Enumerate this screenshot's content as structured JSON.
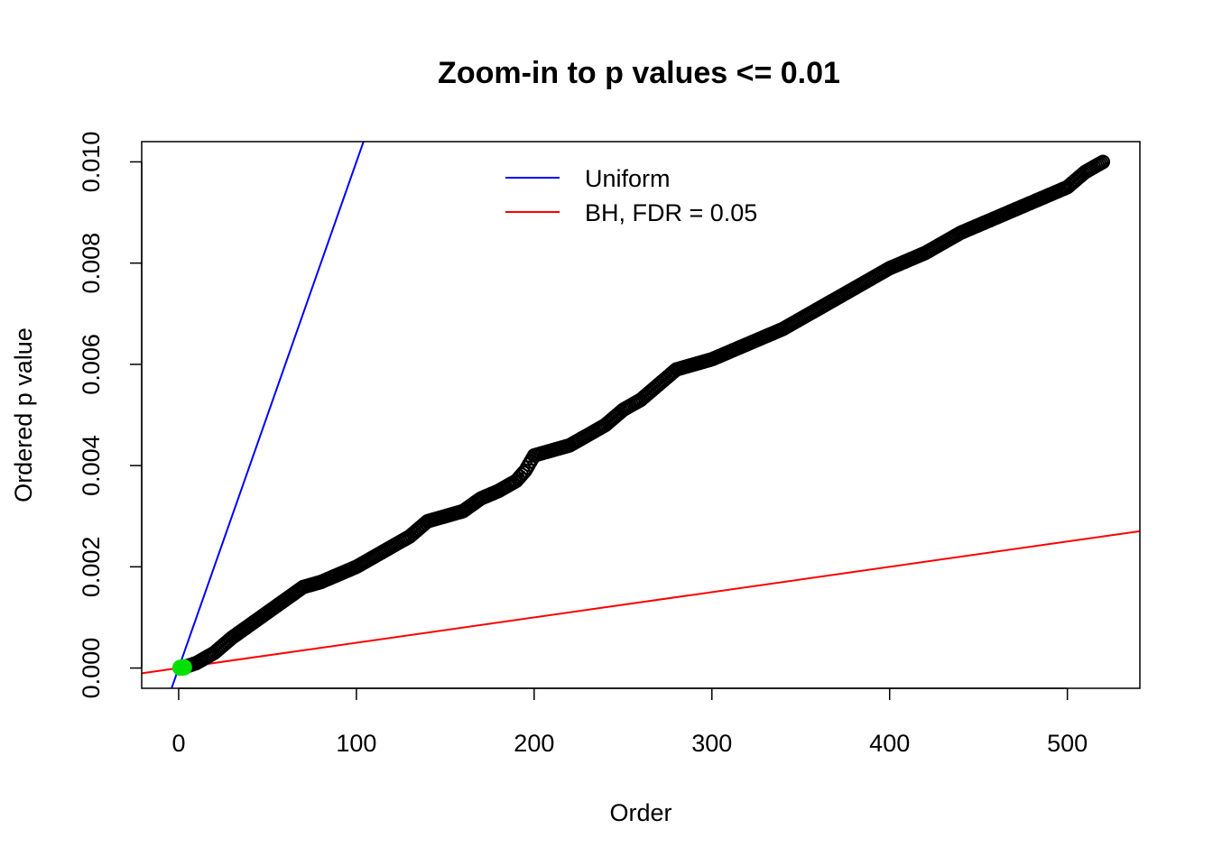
{
  "chart_data": {
    "type": "scatter",
    "title": "Zoom-in to p values <= 0.01",
    "xlabel": "Order",
    "ylabel": "Ordered p value",
    "xlim": [
      -20.8,
      540.8
    ],
    "ylim": [
      -0.0004,
      0.0104
    ],
    "xticks": [
      0,
      100,
      200,
      300,
      400,
      500
    ],
    "xtick_labels": [
      "0",
      "100",
      "200",
      "300",
      "400",
      "500"
    ],
    "yticks": [
      0,
      0.002,
      0.004,
      0.006,
      0.008,
      0.01
    ],
    "ytick_labels": [
      "0.000",
      "0.002",
      "0.004",
      "0.006",
      "0.008",
      "0.010"
    ],
    "n_points": 520,
    "p_value_curve": {
      "order": [
        1,
        5,
        10,
        20,
        30,
        40,
        50,
        60,
        70,
        80,
        90,
        100,
        110,
        120,
        130,
        140,
        150,
        160,
        170,
        180,
        190,
        195,
        200,
        220,
        240,
        250,
        260,
        270,
        280,
        300,
        320,
        340,
        360,
        380,
        400,
        420,
        440,
        460,
        480,
        500,
        510,
        520
      ],
      "p": [
        1e-05,
        4e-05,
        0.0001,
        0.0003,
        0.0006,
        0.00085,
        0.0011,
        0.00135,
        0.0016,
        0.0017,
        0.00185,
        0.002,
        0.0022,
        0.0024,
        0.0026,
        0.0029,
        0.003,
        0.0031,
        0.00335,
        0.0035,
        0.0037,
        0.0039,
        0.0042,
        0.0044,
        0.0048,
        0.0051,
        0.0053,
        0.0056,
        0.0059,
        0.0061,
        0.0064,
        0.0067,
        0.0071,
        0.0075,
        0.0079,
        0.0082,
        0.0086,
        0.0089,
        0.0092,
        0.0095,
        0.0098,
        0.01
      ]
    },
    "significant_points": {
      "order": [
        1,
        2,
        3
      ],
      "p": [
        5e-06,
        1e-05,
        1.5e-05
      ],
      "color": "#00e000"
    },
    "reference_lines": [
      {
        "name": "Uniform",
        "slope": 0.0001,
        "intercept": 0,
        "color": "#0000ff"
      },
      {
        "name": "BH, FDR = 0.05",
        "slope": 5e-06,
        "intercept": 0,
        "color": "#ff0000"
      }
    ],
    "legend_position": "top-center",
    "point_style": "open-circle",
    "point_color": "#000000"
  }
}
